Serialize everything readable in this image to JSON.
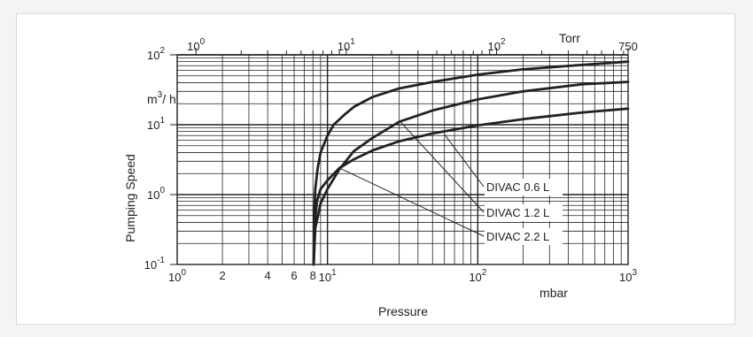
{
  "chart_data": {
    "type": "line",
    "title": "",
    "xlabel": "Pressure",
    "x_unit": "mbar",
    "ylabel": "Pumping Speed",
    "y_unit_base": "m",
    "y_unit_exp": "3",
    "y_unit_rest": "/ h",
    "x_scale": "log",
    "y_scale": "log",
    "xlim": [
      1,
      1000
    ],
    "ylim": [
      0.1,
      100
    ],
    "grid": true,
    "x_ticks": [
      {
        "v": 1,
        "b": "10",
        "e": "0"
      },
      {
        "v": 10,
        "b": "10",
        "e": "1"
      },
      {
        "v": 100,
        "b": "10",
        "e": "2"
      },
      {
        "v": 1000,
        "b": "10",
        "e": "3"
      }
    ],
    "x_minor_labels": [
      {
        "v": 2,
        "t": "2"
      },
      {
        "v": 4,
        "t": "4"
      },
      {
        "v": 6,
        "t": "6"
      },
      {
        "v": 8,
        "t": "8"
      }
    ],
    "y_ticks": [
      {
        "v": 0.1,
        "b": "10",
        "e": "-1"
      },
      {
        "v": 1,
        "b": "10",
        "e": "0"
      },
      {
        "v": 10,
        "b": "10",
        "e": "1"
      },
      {
        "v": 100,
        "b": "10",
        "e": "2"
      }
    ],
    "top_axis": {
      "unit": "Torr",
      "ticks": [
        {
          "torr": 1,
          "b": "10",
          "e": "0"
        },
        {
          "torr": 10,
          "b": "10",
          "e": "1"
        },
        {
          "torr": 100,
          "b": "10",
          "e": "2"
        },
        {
          "torr": 750,
          "t": "750"
        }
      ]
    },
    "series": [
      {
        "name": "DIVAC 0.6 L",
        "x": [
          8.1,
          8.2,
          8.5,
          9,
          10,
          12,
          15,
          20,
          30,
          50,
          100,
          200,
          500,
          1000
        ],
        "values": [
          0.1,
          0.35,
          0.8,
          1.2,
          1.6,
          2.4,
          3.2,
          4.3,
          5.8,
          7.5,
          9.8,
          12,
          15,
          17
        ]
      },
      {
        "name": "DIVAC 1.2 L",
        "x": [
          8.1,
          8.3,
          9,
          10,
          12,
          15,
          20,
          30,
          50,
          100,
          200,
          500,
          1000
        ],
        "values": [
          0.1,
          0.33,
          0.75,
          1.2,
          2.3,
          4.2,
          6.5,
          11,
          16,
          23,
          30,
          38,
          41
        ]
      },
      {
        "name": "DIVAC 2.2 L",
        "x": [
          8.1,
          8.15,
          8.3,
          8.6,
          9,
          10,
          11,
          13,
          15,
          20,
          30,
          50,
          100,
          200,
          500,
          1000
        ],
        "values": [
          0.1,
          0.5,
          1.2,
          2.4,
          4.0,
          7.0,
          10,
          14,
          18,
          25,
          33,
          41,
          52,
          62,
          72,
          80
        ]
      }
    ],
    "legend_placement": "annotations"
  }
}
